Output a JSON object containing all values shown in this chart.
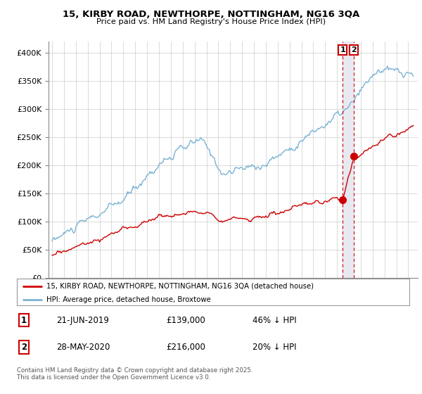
{
  "title": "15, KIRBY ROAD, NEWTHORPE, NOTTINGHAM, NG16 3QA",
  "subtitle": "Price paid vs. HM Land Registry's House Price Index (HPI)",
  "ylim": [
    0,
    420000
  ],
  "yticks": [
    0,
    50000,
    100000,
    150000,
    200000,
    250000,
    300000,
    350000,
    400000
  ],
  "ytick_labels": [
    "£0",
    "£50K",
    "£100K",
    "£150K",
    "£200K",
    "£250K",
    "£300K",
    "£350K",
    "£400K"
  ],
  "xlim_start": 1994.7,
  "xlim_end": 2025.8,
  "sale1_date": 2019.47,
  "sale1_price": 139000,
  "sale2_date": 2020.41,
  "sale2_price": 216000,
  "hpi_color": "#7ab3d4",
  "price_color": "#cc0000",
  "vline_color": "#cc0000",
  "shade_color": "#e8e8f0",
  "background_color": "#ffffff",
  "grid_color": "#cccccc",
  "footnote": "Contains HM Land Registry data © Crown copyright and database right 2025.\nThis data is licensed under the Open Government Licence v3.0.",
  "legend1_text": "15, KIRBY ROAD, NEWTHORPE, NOTTINGHAM, NG16 3QA (detached house)",
  "legend2_text": "HPI: Average price, detached house, Broxtowe",
  "sale1_date_str": "21-JUN-2019",
  "sale1_price_str": "£139,000",
  "sale1_pct_str": "46% ↓ HPI",
  "sale2_date_str": "28-MAY-2020",
  "sale2_price_str": "£216,000",
  "sale2_pct_str": "20% ↓ HPI"
}
